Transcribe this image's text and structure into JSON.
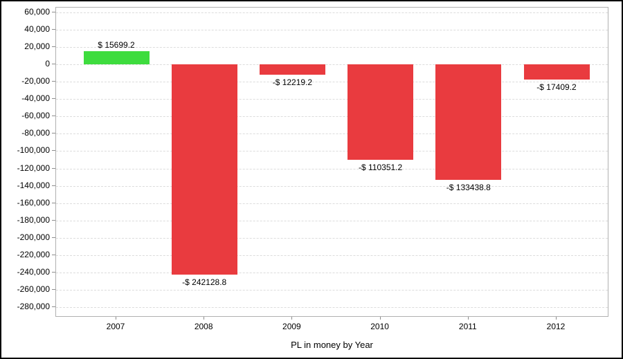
{
  "chart_data": {
    "type": "bar",
    "title": "PL in money by Year",
    "categories": [
      "2007",
      "2008",
      "2009",
      "2010",
      "2011",
      "2012"
    ],
    "values": [
      15699.2,
      -242128.8,
      -12219.2,
      -110351.2,
      -133438.8,
      -17409.2
    ],
    "bar_labels": [
      "$ 15699.2",
      "-$ 242128.8",
      "-$ 12219.2",
      "-$ 110351.2",
      "-$ 133438.8",
      "-$ 17409.2"
    ],
    "y_axis": {
      "max": 60000,
      "min": -280000,
      "tick_step": 20000,
      "tick_labels": [
        "60,000",
        "40,000",
        "20,000",
        "0",
        "-20,000",
        "-40,000",
        "-60,000",
        "-80,000",
        "-100,000",
        "-120,000",
        "-140,000",
        "-160,000",
        "-180,000",
        "-200,000",
        "-220,000",
        "-240,000",
        "-260,000",
        "-280,000"
      ]
    },
    "xlabel": "",
    "ylabel": "",
    "legend": "none",
    "grid": "horizontal-dashed",
    "colors": {
      "positive_bar": "#3edc3e",
      "negative_bar": "#e93b3f",
      "gridline": "#dcdcdc",
      "plot_border": "#b0b0b0",
      "tick": "#8c8c8c",
      "text": "#000000"
    }
  }
}
